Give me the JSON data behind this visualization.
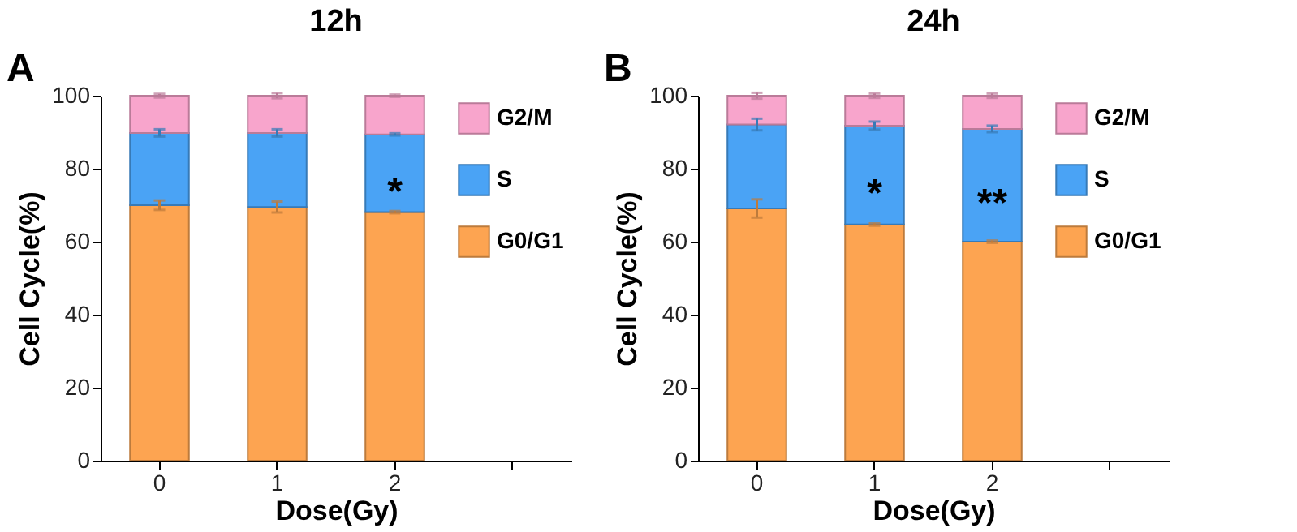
{
  "chart_data": [
    {
      "type": "bar",
      "stacked": true,
      "title": "12h",
      "xlabel": "Dose(Gy)",
      "ylabel": "Cell Cycle(%)",
      "categories": [
        "0",
        "1",
        "2",
        null
      ],
      "ylim": [
        0,
        100
      ],
      "yticks": [
        0,
        20,
        40,
        60,
        80,
        100
      ],
      "grid": false,
      "legend": "top right",
      "series": [
        {
          "name": "G0/G1",
          "color": "#fda451",
          "values": [
            70.0,
            69.5,
            68.1,
            null
          ],
          "errors": [
            1.3,
            1.5,
            0.3,
            null
          ]
        },
        {
          "name": "S",
          "color": "#4aa3f5",
          "values": [
            19.8,
            20.3,
            21.3,
            null
          ],
          "errors": [
            1.0,
            1.0,
            0.3,
            null
          ]
        },
        {
          "name": "G2/M",
          "color": "#f8a5cc",
          "values": [
            10.2,
            10.2,
            10.6,
            null
          ],
          "errors": [
            0.5,
            0.7,
            0.3,
            null
          ]
        }
      ],
      "annotations": [
        "A",
        "*"
      ]
    },
    {
      "type": "bar",
      "stacked": true,
      "title": "24h",
      "xlabel": "Dose(Gy)",
      "ylabel": "Cell Cycle(%)",
      "categories": [
        "0",
        "1",
        "2",
        null
      ],
      "ylim": [
        0,
        100
      ],
      "yticks": [
        0,
        20,
        40,
        60,
        80,
        100
      ],
      "grid": false,
      "legend": "top right",
      "series": [
        {
          "name": "G0/G1",
          "color": "#fda451",
          "values": [
            69.1,
            64.7,
            60.0,
            null
          ],
          "errors": [
            2.5,
            0.3,
            0.3,
            null
          ]
        },
        {
          "name": "S",
          "color": "#4aa3f5",
          "values": [
            23.0,
            27.1,
            30.9,
            null
          ],
          "errors": [
            1.6,
            1.1,
            0.9,
            null
          ]
        },
        {
          "name": "G2/M",
          "color": "#f8a5cc",
          "values": [
            7.9,
            8.2,
            9.1,
            null
          ],
          "errors": [
            0.8,
            0.6,
            0.6,
            null
          ]
        }
      ],
      "annotations": [
        "B",
        "*",
        "**"
      ]
    }
  ]
}
